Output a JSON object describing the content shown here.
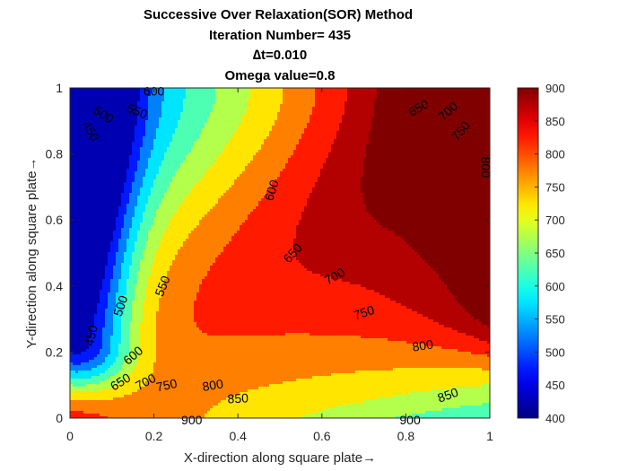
{
  "chart_data": {
    "type": "contour",
    "title": [
      "Successive Over Relaxation(SOR) Method",
      "Iteration Number= 435",
      "∆t=0.010",
      "Omega value=0.8"
    ],
    "xlabel": "X-direction along square plate→",
    "ylabel": "Y-direction along square plate→",
    "xlim": [
      0,
      1
    ],
    "ylim": [
      0,
      1
    ],
    "xticks": [
      0,
      0.2,
      0.4,
      0.6,
      0.8,
      1
    ],
    "yticks": [
      0,
      0.2,
      0.4,
      0.6,
      0.8,
      1
    ],
    "colormap": "jet",
    "clim": [
      400,
      900
    ],
    "colorbar_ticks": [
      400,
      450,
      500,
      550,
      600,
      650,
      700,
      750,
      800,
      850,
      900
    ],
    "levels": [
      450,
      500,
      550,
      600,
      650,
      700,
      750,
      800,
      850,
      900
    ],
    "grid": false,
    "contour_labels": [
      {
        "text": "600",
        "x": 0.2,
        "y": 0.99,
        "angle": 0
      },
      {
        "text": "550",
        "x": 0.16,
        "y": 0.93,
        "angle": 22
      },
      {
        "text": "500",
        "x": 0.08,
        "y": 0.92,
        "angle": 33
      },
      {
        "text": "450",
        "x": 0.05,
        "y": 0.87,
        "angle": 60
      },
      {
        "text": "650",
        "x": 0.83,
        "y": 0.94,
        "angle": -30
      },
      {
        "text": "700",
        "x": 0.9,
        "y": 0.93,
        "angle": -43
      },
      {
        "text": "750",
        "x": 0.93,
        "y": 0.87,
        "angle": -50
      },
      {
        "text": "800",
        "x": 0.99,
        "y": 0.76,
        "angle": 90
      },
      {
        "text": "600",
        "x": 0.48,
        "y": 0.69,
        "angle": -72
      },
      {
        "text": "650",
        "x": 0.53,
        "y": 0.5,
        "angle": -48
      },
      {
        "text": "700",
        "x": 0.63,
        "y": 0.43,
        "angle": -30
      },
      {
        "text": "750",
        "x": 0.7,
        "y": 0.32,
        "angle": -18
      },
      {
        "text": "550",
        "x": 0.22,
        "y": 0.4,
        "angle": -68
      },
      {
        "text": "500",
        "x": 0.12,
        "y": 0.34,
        "angle": -72
      },
      {
        "text": "450",
        "x": 0.05,
        "y": 0.25,
        "angle": -78
      },
      {
        "text": "600",
        "x": 0.15,
        "y": 0.19,
        "angle": -40
      },
      {
        "text": "650",
        "x": 0.12,
        "y": 0.11,
        "angle": -32
      },
      {
        "text": "700",
        "x": 0.18,
        "y": 0.11,
        "angle": -28
      },
      {
        "text": "750",
        "x": 0.23,
        "y": 0.1,
        "angle": -12
      },
      {
        "text": "800",
        "x": 0.34,
        "y": 0.1,
        "angle": -9
      },
      {
        "text": "850",
        "x": 0.4,
        "y": 0.06,
        "angle": -3
      },
      {
        "text": "900",
        "x": 0.29,
        "y": -0.005,
        "angle": 0
      },
      {
        "text": "800",
        "x": 0.84,
        "y": 0.22,
        "angle": -9
      },
      {
        "text": "850",
        "x": 0.9,
        "y": 0.07,
        "angle": -20
      },
      {
        "text": "900",
        "x": 0.81,
        "y": -0.005,
        "angle": 0
      }
    ]
  }
}
